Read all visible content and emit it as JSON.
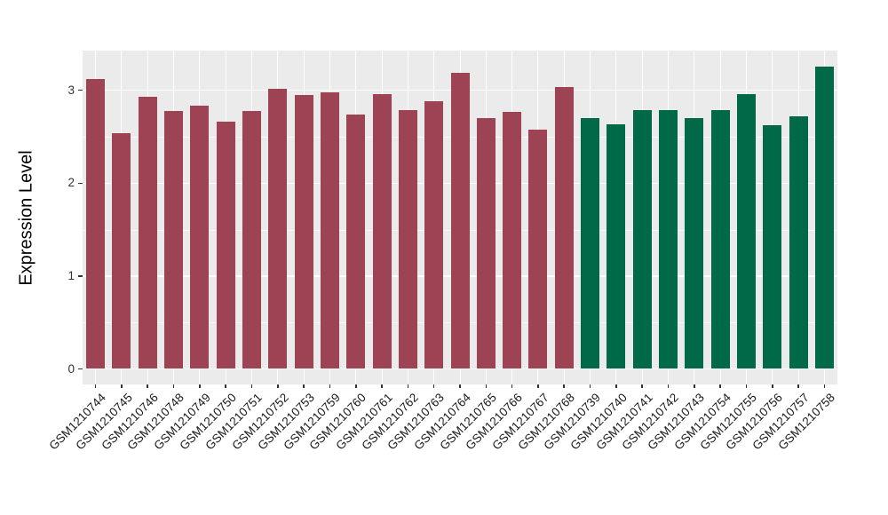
{
  "chart_data": {
    "type": "bar",
    "title": "",
    "xlabel": "",
    "ylabel": "Expression Level",
    "ylim": [
      -0.17,
      3.43
    ],
    "yticks": [
      0,
      1,
      2,
      3
    ],
    "ytick_labels": [
      "0",
      "1",
      "2",
      "3"
    ],
    "y_minor_gridlines": [
      0.5,
      1.5,
      2.5
    ],
    "grid": "white major and minor gridlines on gray panel, vertical gridline at each category",
    "legend_position": "none",
    "x_tick_label_rotation_deg": 45,
    "categories": [
      "GSM1210744",
      "GSM1210745",
      "GSM1210746",
      "GSM1210748",
      "GSM1210749",
      "GSM1210750",
      "GSM1210751",
      "GSM1210752",
      "GSM1210753",
      "GSM1210759",
      "GSM1210760",
      "GSM1210761",
      "GSM1210762",
      "GSM1210763",
      "GSM1210764",
      "GSM1210765",
      "GSM1210766",
      "GSM1210767",
      "GSM1210768",
      "GSM1210739",
      "GSM1210740",
      "GSM1210741",
      "GSM1210742",
      "GSM1210743",
      "GSM1210754",
      "GSM1210755",
      "GSM1210756",
      "GSM1210757",
      "GSM1210758"
    ],
    "values": [
      3.12,
      2.54,
      2.93,
      2.78,
      2.83,
      2.66,
      2.78,
      3.02,
      2.95,
      2.98,
      2.74,
      2.96,
      2.79,
      2.88,
      3.19,
      2.7,
      2.77,
      2.58,
      3.04,
      2.7,
      2.63,
      2.79,
      2.79,
      2.7,
      2.79,
      2.96,
      2.62,
      2.72,
      3.26
    ],
    "group_index": [
      0,
      0,
      0,
      0,
      0,
      0,
      0,
      0,
      0,
      0,
      0,
      0,
      0,
      0,
      0,
      0,
      0,
      0,
      0,
      1,
      1,
      1,
      1,
      1,
      1,
      1,
      1,
      1,
      1
    ],
    "group_colors": [
      "#9D4353",
      "#006948"
    ]
  },
  "colors": {
    "panel_background": "#EBEBEB",
    "gridline": "#FFFFFF",
    "bar_red": "#9D4353",
    "bar_green": "#006948",
    "tick_mark": "#333333",
    "tick_label_text": "#333333",
    "axis_title_text": "#000000",
    "page_background": "#FFFFFF"
  }
}
